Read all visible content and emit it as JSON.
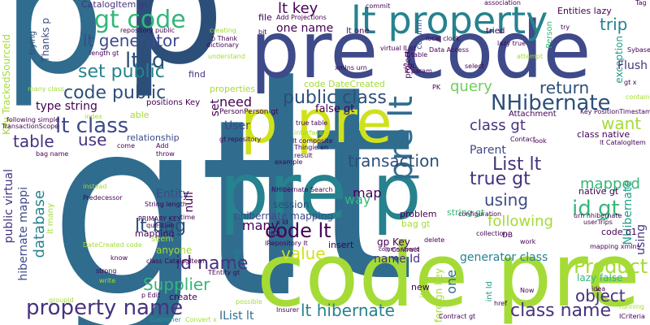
{
  "words": {
    "gt_big": "gt",
    "lt_big": "lt",
    "p_top": "p",
    "p_top2": "p",
    "pre_code": "pre code",
    "code_pre": "code pre",
    "pre_p": "pre p",
    "pre_lt": "pre lt",
    "p_pre": "p pre",
    "lt_property": "lt property",
    "gt_code": "gt code",
    "lt_id": "lt id",
    "lt_generator": "lt generator",
    "set_public": "set public",
    "code_public": "code public",
    "lt_class": "lt class",
    "public_class": "public class",
    "nhibernate": "NHibernate",
    "property_name": "property name",
    "code_lt": "code lt",
    "list_lt": "List lt",
    "true_gt": "true gt",
    "id_gt": "id gt",
    "lt_bag": "lt bag",
    "id_name": "id name",
    "supplier": "Supplier",
    "product": "Product",
    "object": "object",
    "class_name": "class name",
    "lt_hibernate": "lt hibernate",
    "mapped": "mapped",
    "class_gt": "class gt",
    "transaction": "transaction",
    "using": "using",
    "table": "table",
    "use": "use",
    "return": "return",
    "query": "query",
    "error": "error",
    "trip": "trip",
    "want": "want",
    "lt_key": "lt key",
    "one_name": "one name",
    "type_string": "type string",
    "need": "need",
    "user": "User",
    "entity": "Entity",
    "map": "map",
    "way": "way",
    "many": "many",
    "value": "value",
    "following": "following",
    "generator_class": "generator class",
    "name_id": "name Id",
    "gp_key": "gp Key",
    "one": "one",
    "database": "database",
    "public_virtual": "public virtual",
    "hibernate_mappi": "hibernate mappi",
    "set": "set",
    "file": "file",
    "parent": "Parent",
    "session": "session",
    "flush": "Flush",
    "catalogitem_gt": "CatalogItem gt",
    "key_tracked": "Key TrackedSourceId",
    "trying": "trying",
    "thanks_p": "Thanks p",
    "item": "item",
    "foreign_key": "foreign key",
    "ilist_lt": "IList lt",
    "code_datecreated": "code DateCreated",
    "entities_lazy": "Entities lazy",
    "properties": "properties",
    "relationship": "relationship",
    "null": "null",
    "lazy_false": "lazy false",
    "mapping": "mapping",
    "anyone": "anyone",
    "create": "create",
    "new": "new",
    "problem": "problem",
    "string_gt": "string gt",
    "bag_gt": "bag gt",
    "false_gt": "false gt",
    "code_o1": "code o1",
    "nhibernate_mapping": "nhibernate mapping",
    "native_gt": "native gt",
    "exception": "exception",
    "attachment": "Attachment",
    "class_native": "class native",
    "able": "able",
    "find": "find",
    "repository_public": "repository public",
    "creating": "creating",
    "add_projections": "Add Projections",
    "column": "column",
    "attempt": "attempt",
    "select": "select",
    "project": "project",
    "user_trips": "userTrips",
    "urn_nhibernate": "urn nhibernate",
    "mapping_xmlns": "mapping xmlns",
    "personperson_gt": "PersonPerson gt",
    "gt_repository": "gt repository",
    "thingie_en": "Thingie en",
    "nhibernate_search": "NHibernate Search",
    "irepository": "IRepository lt",
    "insert": "insert",
    "insurer": "Insurer",
    "customer": "Customer",
    "predecessor": "Predecessor",
    "primary_key": "PRIMARY KEY",
    "string_length": "String length",
    "datecreated_code": "DateCreated code",
    "class_catalogitem": "class CatalogItem",
    "lt_contract": "lt Contract",
    "contract_gt": "Contract gt",
    "tentity_gt": "TEntity gt",
    "icriteria": "ICriteria",
    "convert_x": "Convert x",
    "understand": "understand",
    "dictionary": "dictionary",
    "data_access": "Data Access",
    "local_clock": "local clock",
    "tried": "tried",
    "association": "association",
    "commit": "commit",
    "question": "question",
    "strong": "strong",
    "write": "write",
    "know": "know",
    "seem": "seem",
    "work": "work",
    "idea": "idea",
    "delete": "delete",
    "collection": "collection",
    "configuration": "configuration",
    "interface": "interface",
    "result": "result",
    "sql": "SQL",
    "hql": "HQL",
    "group": "Group",
    "example": "example",
    "instead": "instead",
    "time": "time",
    "throw": "throw",
    "index": "index",
    "lt_many": "lt many",
    "lt_param": "lt param",
    "lt_one": "lt one",
    "lt_table": "lt table",
    "lt_composite": "lt composite",
    "lt_catalogitem": "lt CatalogItem",
    "person": "Person",
    "key_position": "Key PositionTimestamp",
    "positions_key": "positions Key",
    "following_simple": "following simple",
    "transactionscope": "TransactionScope",
    "groupid": "groupid",
    "p_edit": "p Edit",
    "possible": "possible",
    "contact": "Contact",
    "look": "look",
    "now": "Now",
    "href": "href",
    "running": "running",
    "container": "container",
    "tag": "Tag",
    "gt_x": "gt x",
    "try": "try",
    "length_gt": "length gt",
    "bit": "bit",
    "xmlns_urn": "xmlns urn",
    "true_table": "true table",
    "virtual_ilist": "virtual IList",
    "many_class": "many class",
    "bag_name": "bag name",
    "p_thank": "p Thank",
    "lazy_true": "lazy true",
    "come": "come",
    "db": "DB",
    "int_id": "int Id",
    "column_userid": "column UserId",
    "pk": "PK",
    "x_id": "x Id",
    "add": "Add",
    "sybase": "Sybase"
  }
}
